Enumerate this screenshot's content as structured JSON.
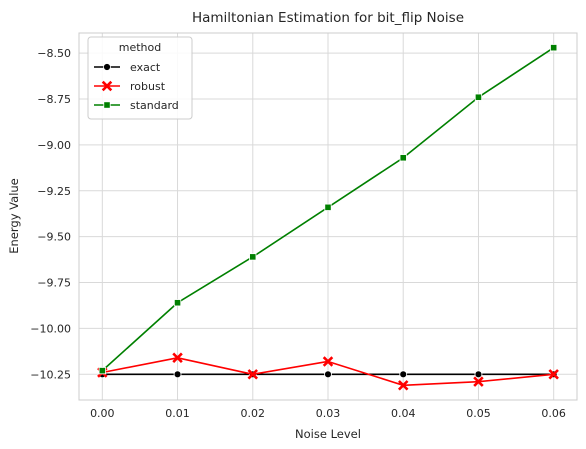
{
  "chart_data": {
    "type": "line",
    "title": "Hamiltonian Estimation for bit_flip Noise",
    "xlabel": "Noise Level",
    "ylabel": "Energy Value",
    "x": [
      0.0,
      0.01,
      0.02,
      0.03,
      0.04,
      0.05,
      0.06
    ],
    "x_tick_labels": [
      "0.00",
      "0.01",
      "0.02",
      "0.03",
      "0.04",
      "0.05",
      "0.06"
    ],
    "y_ticks": [
      -10.25,
      -10.0,
      -9.75,
      -9.5,
      -9.25,
      -9.0,
      -8.75,
      -8.5
    ],
    "y_tick_labels": [
      "−10.25",
      "−10.00",
      "−9.75",
      "−9.50",
      "−9.25",
      "−9.00",
      "−8.75",
      "−8.50"
    ],
    "xlim": [
      -0.0031,
      0.0631
    ],
    "ylim": [
      -10.39,
      -8.39
    ],
    "grid": true,
    "legend": {
      "title": "method",
      "placement": "top-left"
    },
    "series": [
      {
        "name": "exact",
        "color": "#000000",
        "marker": "circle",
        "values": [
          -10.25,
          -10.25,
          -10.25,
          -10.25,
          -10.25,
          -10.25,
          -10.25
        ]
      },
      {
        "name": "robust",
        "color": "#ff0000",
        "marker": "x",
        "values": [
          -10.24,
          -10.16,
          -10.25,
          -10.18,
          -10.31,
          -10.29,
          -10.25
        ]
      },
      {
        "name": "standard",
        "color": "#008000",
        "marker": "square",
        "values": [
          -10.23,
          -9.86,
          -9.61,
          -9.34,
          -9.07,
          -8.74,
          -8.47
        ]
      }
    ]
  }
}
